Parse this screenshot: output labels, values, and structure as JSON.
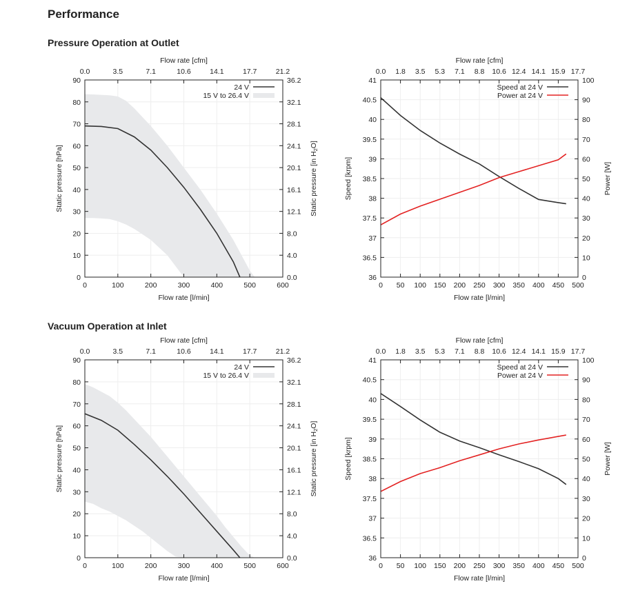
{
  "page_title": "Performance",
  "sections": [
    {
      "title": "Pressure Operation at Outlet"
    },
    {
      "title": "Vacuum Operation at Inlet"
    }
  ],
  "colors": {
    "speed": "#333333",
    "power": "#e32222",
    "band": "#e8e9eb",
    "pressure_line": "#333333",
    "grid": "#eeeeee"
  },
  "chart_data": [
    {
      "type": "area",
      "section": "Pressure Operation at Outlet",
      "xlabel": "Flow rate [l/min]",
      "x2label": "Flow rate [cfm]",
      "ylabel": "Static pressure [hPa]",
      "y2label": "Static pressure [in H2O]",
      "xlim": [
        0,
        600
      ],
      "ylim": [
        0,
        90
      ],
      "x_ticks": [
        "0",
        "100",
        "200",
        "300",
        "400",
        "500",
        "600"
      ],
      "x2_ticks": [
        "0.0",
        "3.5",
        "7.1",
        "10.6",
        "14.1",
        "17.7",
        "21.2"
      ],
      "y_ticks": [
        "0",
        "10",
        "20",
        "30",
        "40",
        "50",
        "60",
        "70",
        "80",
        "90"
      ],
      "y2_ticks": [
        "0.0",
        "4.0",
        "8.0",
        "12.1",
        "16.1",
        "20.1",
        "24.1",
        "28.1",
        "32.1",
        "36.2"
      ],
      "legend": [
        "24 V",
        "15 V to 26.4 V"
      ],
      "legend_position": "top-right",
      "series": [
        {
          "name": "24 V",
          "style": "line",
          "x": [
            0,
            50,
            100,
            150,
            200,
            250,
            300,
            350,
            400,
            450,
            470
          ],
          "y": [
            69,
            68.8,
            67.8,
            64,
            58,
            50,
            41,
            31,
            20,
            7,
            0
          ]
        },
        {
          "name": "15 V to 26.4 V",
          "style": "band",
          "x": [
            0,
            25,
            50,
            75,
            100,
            125,
            150,
            175,
            200,
            225,
            250,
            275,
            300,
            325,
            350,
            375,
            400,
            425,
            450,
            475,
            500,
            515
          ],
          "upper": [
            83.5,
            83.4,
            83.2,
            83,
            82.5,
            80.5,
            77,
            73,
            69,
            64.5,
            60,
            55,
            50,
            45,
            40,
            34.5,
            29,
            23,
            17,
            10,
            3,
            0
          ],
          "lower": [
            27,
            27,
            26.8,
            26.5,
            25.5,
            24,
            22,
            19.5,
            17,
            13.5,
            10,
            5,
            0,
            null,
            null,
            null,
            null,
            null,
            null,
            null,
            null,
            null
          ]
        }
      ]
    },
    {
      "type": "line",
      "section": "Pressure Operation at Outlet",
      "xlabel": "Flow rate [l/min]",
      "x2label": "Flow rate [cfm]",
      "ylabel": "Speed [krpm]",
      "y2label": "Power [W]",
      "xlim": [
        0,
        500
      ],
      "ylim": [
        36,
        41
      ],
      "y2lim": [
        0,
        100
      ],
      "x_ticks": [
        "0",
        "50",
        "100",
        "150",
        "200",
        "250",
        "300",
        "350",
        "400",
        "450",
        "500"
      ],
      "x2_ticks": [
        "0.0",
        "1.8",
        "3.5",
        "5.3",
        "7.1",
        "8.8",
        "10.6",
        "12.4",
        "14.1",
        "15.9",
        "17.7"
      ],
      "y_ticks": [
        "36",
        "36.5",
        "37",
        "37.5",
        "38",
        "38.5",
        "39",
        "39.5",
        "40",
        "40.5",
        "41"
      ],
      "y2_ticks": [
        "0",
        "10",
        "20",
        "30",
        "40",
        "50",
        "60",
        "70",
        "80",
        "90",
        "100"
      ],
      "legend": [
        "Speed at 24 V",
        "Power at 24 V"
      ],
      "legend_position": "top-right",
      "series": [
        {
          "name": "Speed at 24 V",
          "axis": "left",
          "x": [
            0,
            50,
            100,
            150,
            200,
            250,
            300,
            350,
            400,
            450,
            470
          ],
          "y": [
            40.55,
            40.1,
            39.72,
            39.4,
            39.12,
            38.87,
            38.55,
            38.25,
            37.97,
            37.89,
            37.86
          ]
        },
        {
          "name": "Power at 24 V",
          "axis": "right",
          "x": [
            0,
            50,
            100,
            150,
            200,
            250,
            300,
            350,
            400,
            450,
            470
          ],
          "y": [
            26.5,
            32,
            36,
            39.5,
            43,
            46.5,
            50.5,
            53.5,
            56.5,
            59.5,
            62.5
          ]
        }
      ]
    },
    {
      "type": "area",
      "section": "Vacuum Operation at Inlet",
      "xlabel": "Flow rate [l/min]",
      "x2label": "Flow rate [cfm]",
      "ylabel": "Static pressure [hPa]",
      "y2label": "Static pressure [in H2O]",
      "xlim": [
        0,
        600
      ],
      "ylim": [
        0,
        90
      ],
      "x_ticks": [
        "0",
        "100",
        "200",
        "300",
        "400",
        "500",
        "600"
      ],
      "x2_ticks": [
        "0.0",
        "3.5",
        "7.1",
        "10.6",
        "14.1",
        "17.7",
        "21.2"
      ],
      "y_ticks": [
        "0",
        "10",
        "20",
        "30",
        "40",
        "50",
        "60",
        "70",
        "80",
        "90"
      ],
      "y2_ticks": [
        "0.0",
        "4.0",
        "8.0",
        "12.1",
        "16.1",
        "20.1",
        "24.1",
        "28.1",
        "32.1",
        "36.2"
      ],
      "legend": [
        "24 V",
        "15 V to 26.4 V"
      ],
      "legend_position": "top-right",
      "series": [
        {
          "name": "24 V",
          "style": "line",
          "x": [
            0,
            50,
            100,
            150,
            200,
            250,
            300,
            350,
            400,
            450,
            470
          ],
          "y": [
            65.5,
            62.5,
            58,
            51.5,
            44.5,
            37,
            29,
            20.5,
            12,
            3.5,
            0
          ]
        },
        {
          "name": "15 V to 26.4 V",
          "style": "band",
          "x": [
            0,
            25,
            50,
            75,
            100,
            125,
            150,
            175,
            200,
            225,
            250,
            275,
            300,
            325,
            350,
            375,
            400,
            425,
            450,
            475,
            500,
            515
          ],
          "upper": [
            79,
            77.5,
            75.5,
            73.5,
            70.5,
            67,
            63,
            59,
            55,
            50.5,
            46,
            41.5,
            37,
            32.5,
            28,
            23.5,
            19,
            14,
            9.5,
            5,
            1,
            0
          ],
          "lower": [
            25.5,
            24.5,
            22.5,
            21,
            19,
            17,
            14.5,
            12,
            9,
            6,
            3,
            0.5,
            0,
            null,
            null,
            null,
            null,
            null,
            null,
            null,
            null,
            null
          ]
        }
      ]
    },
    {
      "type": "line",
      "section": "Vacuum Operation at Inlet",
      "xlabel": "Flow rate [l/min]",
      "x2label": "Flow rate [cfm]",
      "ylabel": "Speed [krpm]",
      "y2label": "Power [W]",
      "xlim": [
        0,
        500
      ],
      "ylim": [
        36,
        41
      ],
      "y2lim": [
        0,
        100
      ],
      "x_ticks": [
        "0",
        "50",
        "100",
        "150",
        "200",
        "250",
        "300",
        "350",
        "400",
        "450",
        "500"
      ],
      "x2_ticks": [
        "0.0",
        "1.8",
        "3.5",
        "5.3",
        "7.1",
        "8.8",
        "10.6",
        "12.4",
        "14.1",
        "15.9",
        "17.7"
      ],
      "y_ticks": [
        "36",
        "36.5",
        "37",
        "37.5",
        "38",
        "38.5",
        "39",
        "39.5",
        "40",
        "40.5",
        "41"
      ],
      "y2_ticks": [
        "0",
        "10",
        "20",
        "30",
        "40",
        "50",
        "60",
        "70",
        "80",
        "90",
        "100"
      ],
      "legend": [
        "Speed at 24 V",
        "Power at 24 V"
      ],
      "legend_position": "top-right",
      "series": [
        {
          "name": "Speed at 24 V",
          "axis": "left",
          "x": [
            0,
            50,
            100,
            150,
            200,
            250,
            300,
            350,
            400,
            450,
            470
          ],
          "y": [
            40.15,
            39.82,
            39.48,
            39.17,
            38.95,
            38.78,
            38.6,
            38.43,
            38.25,
            38.0,
            37.85
          ]
        },
        {
          "name": "Power at 24 V",
          "axis": "right",
          "x": [
            0,
            50,
            100,
            150,
            200,
            250,
            300,
            350,
            400,
            450,
            470
          ],
          "y": [
            33.5,
            38.5,
            42.5,
            45.5,
            49,
            52,
            55,
            57.5,
            59.5,
            61.3,
            62
          ]
        }
      ]
    }
  ]
}
